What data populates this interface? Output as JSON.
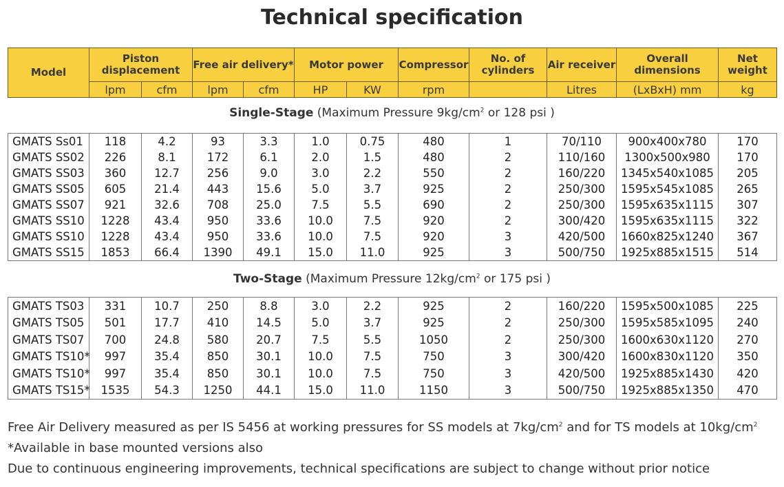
{
  "title": "Technical specification",
  "header": {
    "model": "Model",
    "piston": "Piston displacement",
    "fad": "Free air delivery*",
    "motor": "Motor power",
    "compressor": "Compressor",
    "cylinders": "No. of cylinders",
    "receiver": "Air receiver",
    "dimensions": "Overall dimensions",
    "weight": "Net weight",
    "units": [
      "lpm",
      "cfm",
      "lpm",
      "cfm",
      "HP",
      "KW",
      "rpm",
      "",
      "Litres",
      "(LxBxH) mm",
      "kg"
    ]
  },
  "single_stage": {
    "label": "Single-Stage",
    "pressure_prefix": "(Maximum Pressure 9kg/cm",
    "pressure_sup": "2",
    "pressure_suffix": " or 128 psi )",
    "rows": [
      [
        "GMATS Ss01",
        "118",
        "4.2",
        "93",
        "3.3",
        "1.0",
        "0.75",
        "480",
        "1",
        "70/110",
        "900x400x780",
        "170"
      ],
      [
        "GMATS SS02",
        "226",
        "8.1",
        "172",
        "6.1",
        "2.0",
        "1.5",
        "480",
        "2",
        "110/160",
        "1300x500x980",
        "170"
      ],
      [
        "GMATS SS03",
        "360",
        "12.7",
        "256",
        "9.0",
        "3.0",
        "2.2",
        "550",
        "2",
        "160/220",
        "1345x540x1085",
        "205"
      ],
      [
        "GMATS SS05",
        "605",
        "21.4",
        "443",
        "15.6",
        "5.0",
        "3.7",
        "925",
        "2",
        "250/300",
        "1595x545x1085",
        "265"
      ],
      [
        "GMATS SS07",
        "921",
        "32.6",
        "708",
        "25.0",
        "7.5",
        "5.5",
        "690",
        "2",
        "250/300",
        "1595x635x1115",
        "307"
      ],
      [
        "GMATS SS10",
        "1228",
        "43.4",
        "950",
        "33.6",
        "10.0",
        "7.5",
        "920",
        "2",
        "300/420",
        "1595x635x1115",
        "322"
      ],
      [
        "GMATS SS10",
        "1228",
        "43.4",
        "950",
        "33.6",
        "10.0",
        "7.5",
        "920",
        "3",
        "420/500",
        "1660x825x1240",
        "367"
      ],
      [
        "GMATS SS15",
        "1853",
        "66.4",
        "1390",
        "49.1",
        "15.0",
        "11.0",
        "925",
        "3",
        "500/750",
        "1925x885x1515",
        "514"
      ]
    ]
  },
  "two_stage": {
    "label": "Two-Stage",
    "pressure_prefix": "(Maximum Pressure 12kg/cm",
    "pressure_sup": "2",
    "pressure_suffix": " or 175 psi )",
    "rows": [
      [
        "GMATS TS03",
        "331",
        "10.7",
        "250",
        "8.8",
        "3.0",
        "2.2",
        "925",
        "2",
        "160/220",
        "1595x500x1085",
        "225"
      ],
      [
        "GMATS TS05",
        "501",
        "17.7",
        "410",
        "14.5",
        "5.0",
        "3.7",
        "925",
        "2",
        "250/300",
        "1595x585x1095",
        "240"
      ],
      [
        "GMATS TS07",
        "700",
        "24.8",
        "580",
        "20.7",
        "7.5",
        "5.5",
        "1050",
        "2",
        "250/300",
        "1600x630x1120",
        "270"
      ],
      [
        "GMATS TS10*",
        "997",
        "35.4",
        "850",
        "30.1",
        "10.0",
        "7.5",
        "750",
        "3",
        "300/420",
        "1600x830x1120",
        "350"
      ],
      [
        "GMATS TS10*",
        "997",
        "35.4",
        "850",
        "30.1",
        "10.0",
        "7.5",
        "750",
        "3",
        "420/500",
        "1925x885x1430",
        "420"
      ],
      [
        "GMATS TS15*",
        "1535",
        "54.3",
        "1250",
        "44.1",
        "15.0",
        "11.0",
        "1150",
        "3",
        "500/750",
        "1925x885x1350",
        "470"
      ]
    ]
  },
  "notes": {
    "line1_a": "Free Air Delivery measured as per IS 5456 at working pressures for SS models at 7kg/cm",
    "line1_sup1": "2",
    "line1_b": " and for TS models at 10kg/cm",
    "line1_sup2": "2",
    "line2": "*Available in base mounted versions also",
    "line3": "Due to continuous engineering improvements, technical specifications are subject to change without prior notice"
  },
  "colors": {
    "header_bg": "#f8cf3e",
    "border": "#777777"
  }
}
